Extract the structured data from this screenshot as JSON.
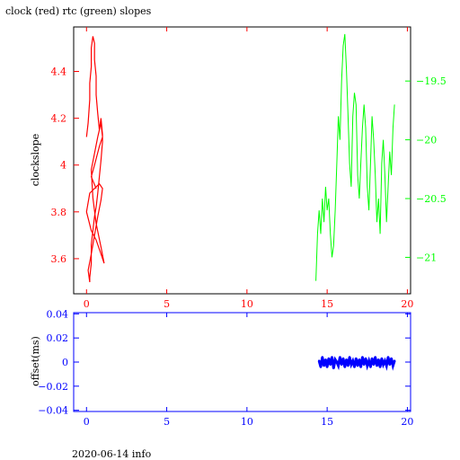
{
  "title": "clock (red) rtc (green) slopes",
  "footer": "2020-06-14 info",
  "colors": {
    "clock": "#ff0000",
    "rtc": "#00ff00",
    "offset": "#0000ff",
    "frame": "#000000"
  },
  "chart_data": [
    {
      "type": "line",
      "ylabel": "clockslope",
      "y2label": "",
      "xlim": [
        -0.8,
        20.2
      ],
      "ylim": [
        3.45,
        4.59
      ],
      "y2lim": [
        -21.31,
        -19.04
      ],
      "xticks": [
        0,
        5,
        10,
        15,
        20
      ],
      "yticks": [
        3.6,
        3.8,
        4,
        4.2,
        4.4
      ],
      "y2ticks": [
        -19.5,
        -20,
        -20.5,
        -21
      ],
      "y2scale": "reversed",
      "grid": false,
      "series": [
        {
          "axis": "left",
          "x": [
            0.0,
            0.1,
            0.2,
            0.2,
            0.3,
            0.3,
            0.4,
            0.5,
            0.5,
            0.6,
            0.6,
            0.7,
            0.8,
            0.9,
            1.0,
            1.0,
            0.9,
            0.8,
            0.7,
            0.6,
            0.5,
            0.4,
            0.3,
            0.3,
            0.2,
            0.2,
            0.1,
            0.3,
            0.5,
            0.7,
            0.9,
            1.0,
            0.8,
            0.5,
            0.2,
            0.0,
            0.3,
            0.6,
            0.9,
            1.1,
            0.9,
            0.6,
            0.4,
            0.3,
            0.5,
            0.7,
            0.9,
            1.0,
            0.8,
            0.5,
            0.3,
            0.6
          ],
          "y": [
            4.12,
            4.18,
            4.28,
            4.35,
            4.42,
            4.5,
            4.55,
            4.52,
            4.45,
            4.38,
            4.3,
            4.22,
            4.15,
            4.2,
            4.13,
            4.1,
            4.02,
            3.95,
            3.88,
            3.82,
            3.78,
            3.72,
            3.66,
            3.58,
            3.52,
            3.5,
            3.55,
            3.62,
            3.7,
            3.78,
            3.85,
            3.9,
            3.92,
            3.9,
            3.88,
            3.8,
            3.72,
            3.68,
            3.62,
            3.58,
            3.65,
            3.75,
            3.86,
            3.98,
            4.05,
            4.12,
            4.18,
            4.12,
            4.08,
            4.0,
            3.95,
            3.9
          ]
        },
        {
          "axis": "right",
          "x": [
            14.3,
            14.4,
            14.5,
            14.6,
            14.7,
            14.8,
            14.9,
            15.0,
            15.1,
            15.2,
            15.3,
            15.4,
            15.5,
            15.6,
            15.7,
            15.8,
            15.9,
            16.0,
            16.1,
            16.2,
            16.3,
            16.4,
            16.5,
            16.6,
            16.7,
            16.8,
            16.9,
            17.0,
            17.1,
            17.2,
            17.3,
            17.4,
            17.5,
            17.6,
            17.7,
            17.8,
            17.9,
            18.0,
            18.1,
            18.2,
            18.3,
            18.4,
            18.5,
            18.6,
            18.7,
            18.8,
            18.9,
            19.0,
            19.1,
            19.2
          ],
          "y": [
            -21.2,
            -20.8,
            -20.6,
            -20.8,
            -20.5,
            -20.7,
            -20.4,
            -20.6,
            -20.5,
            -20.8,
            -21.0,
            -20.9,
            -20.6,
            -20.2,
            -19.8,
            -20.0,
            -19.5,
            -19.2,
            -19.1,
            -19.4,
            -19.8,
            -20.2,
            -20.4,
            -19.8,
            -19.6,
            -19.7,
            -20.3,
            -20.5,
            -20.2,
            -19.9,
            -19.7,
            -19.9,
            -20.4,
            -20.6,
            -20.2,
            -19.8,
            -20.0,
            -20.3,
            -20.7,
            -20.5,
            -20.8,
            -20.2,
            -20.0,
            -20.3,
            -20.7,
            -20.4,
            -20.1,
            -20.3,
            -19.9,
            -19.7
          ]
        }
      ]
    },
    {
      "type": "scatter",
      "ylabel": "offset(ms)",
      "xlim": [
        -0.8,
        20.2
      ],
      "ylim": [
        -0.041,
        0.041
      ],
      "xticks": [
        0,
        5,
        10,
        15,
        20
      ],
      "yticks": [
        0.04,
        0.02,
        0,
        -0.02,
        -0.04
      ],
      "grid": false,
      "series": [
        {
          "x": [
            14.5,
            14.6,
            14.7,
            14.8,
            14.9,
            15.0,
            15.1,
            15.2,
            15.3,
            15.4,
            15.5,
            15.6,
            15.7,
            15.8,
            15.9,
            16.0,
            16.1,
            16.2,
            16.3,
            16.4,
            16.5,
            16.6,
            16.7,
            16.8,
            16.9,
            17.0,
            17.1,
            17.2,
            17.3,
            17.4,
            17.5,
            17.6,
            17.7,
            17.8,
            17.9,
            18.0,
            18.1,
            18.2,
            18.3,
            18.4,
            18.5,
            18.6,
            18.7,
            18.8,
            18.9,
            19.0,
            19.1,
            19.2
          ],
          "y": [
            0.001,
            -0.004,
            0.004,
            -0.003,
            0.002,
            -0.004,
            0.003,
            -0.002,
            0.004,
            -0.005,
            0.002,
            0.0,
            -0.003,
            0.004,
            -0.002,
            0.003,
            -0.004,
            0.002,
            -0.003,
            0.004,
            -0.002,
            0.001,
            -0.004,
            0.003,
            -0.003,
            0.002,
            -0.004,
            0.004,
            -0.002,
            0.003,
            -0.003,
            0.001,
            -0.004,
            0.003,
            -0.002,
            0.004,
            -0.003,
            0.002,
            -0.004,
            0.003,
            -0.002,
            0.001,
            -0.003,
            0.004,
            -0.002,
            0.003,
            -0.003,
            0.001
          ]
        }
      ]
    }
  ]
}
